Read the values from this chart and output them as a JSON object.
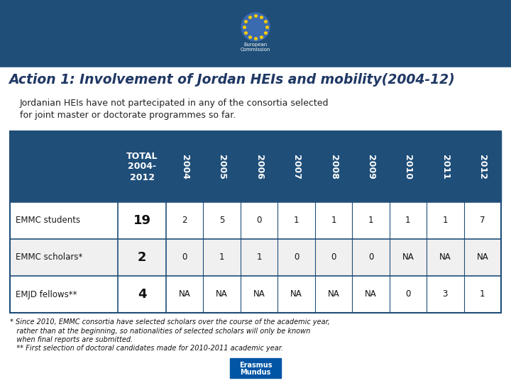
{
  "title": "Action 1: Involvement of Jordan HEIs and mobility(2004-12)",
  "subtitle_lines": [
    "Jordanian HEIs have not partecipated in any of the consortia selected",
    "for joint master or doctorate programmes so far."
  ],
  "header_bg": "#1f4e79",
  "col_header_years": [
    "2004",
    "2005",
    "2006",
    "2007",
    "2008",
    "2009",
    "2010",
    "2011",
    "2012"
  ],
  "rows": [
    {
      "label": "EMMC students",
      "total": "19",
      "values": [
        "2",
        "5",
        "0",
        "1",
        "1",
        "1",
        "1",
        "1",
        "7"
      ]
    },
    {
      "label": "EMMC scholars*",
      "total": "2",
      "values": [
        "0",
        "1",
        "1",
        "0",
        "0",
        "0",
        "NA",
        "NA",
        "NA"
      ]
    },
    {
      "label": "EMJD fellows**",
      "total": "4",
      "values": [
        "NA",
        "NA",
        "NA",
        "NA",
        "NA",
        "NA",
        "0",
        "3",
        "1"
      ]
    }
  ],
  "footnote_lines": [
    "* Since 2010, EMMC consortia have selected scholars over the course of the academic year,",
    "   rather than at the beginning, so nationalities of selected scholars will only be known",
    "   when final reports are submitted.",
    "   ** First selection of doctoral candidates made for 2010-2011 academic year."
  ],
  "top_bar_color": "#1f4e79",
  "title_color": "#1f3864",
  "table_border_color": "#1f4e79",
  "white": "#ffffff",
  "erasmus_blue": "#0055a5"
}
